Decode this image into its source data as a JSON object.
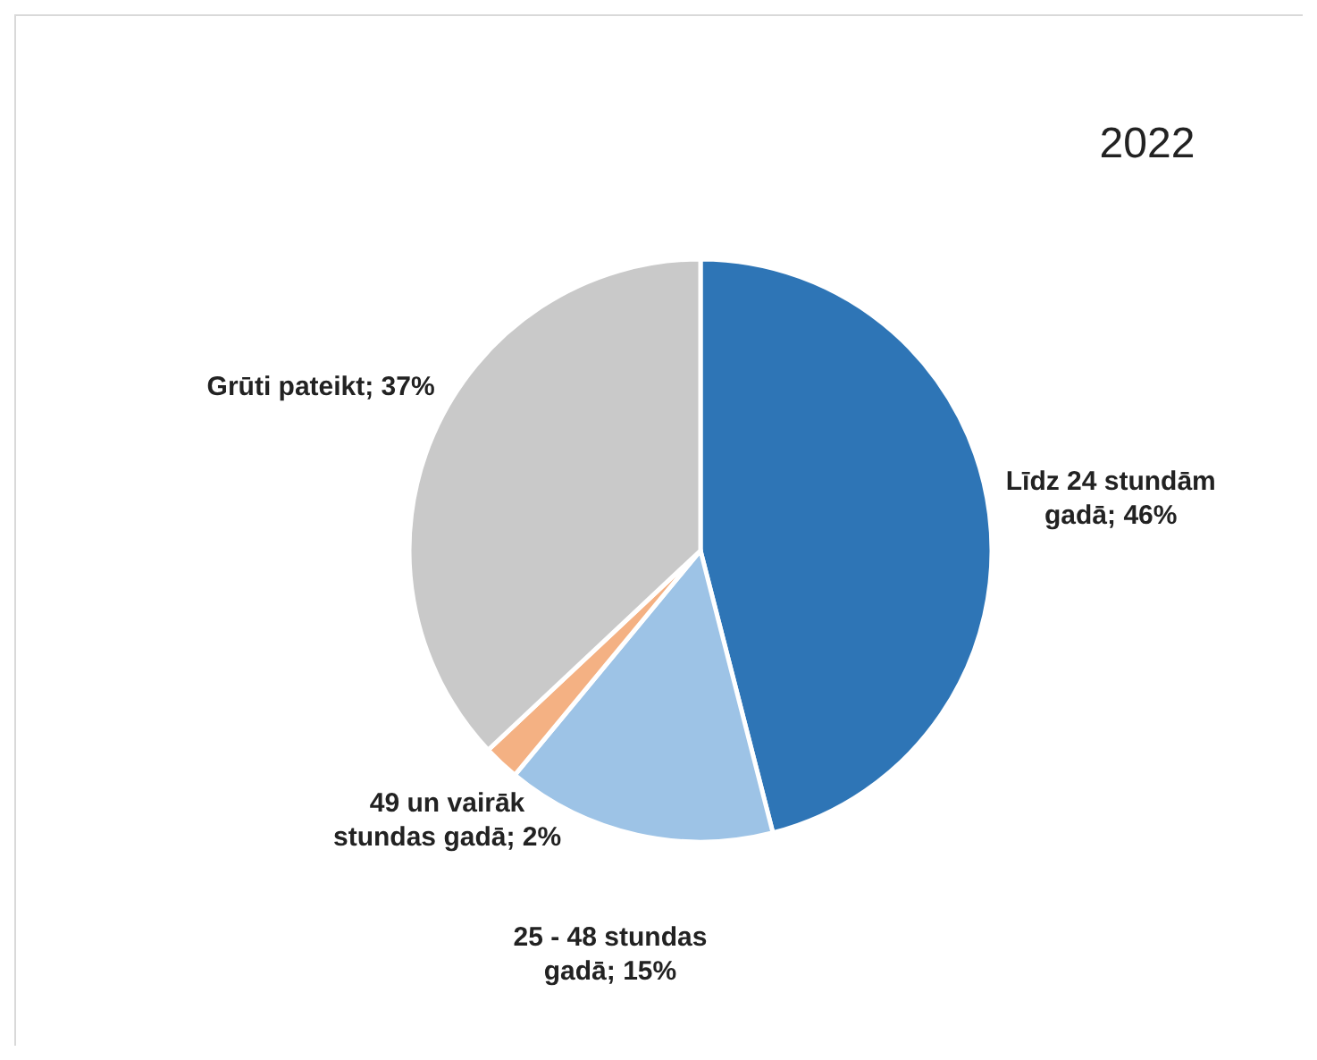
{
  "chart_data": {
    "type": "pie",
    "title": "2022",
    "categories": [
      "Līdz 24 stundām gadā",
      "25 - 48 stundas gadā",
      "49 un vairāk stundas gadā",
      "Grūti pateikt"
    ],
    "values": [
      46,
      15,
      2,
      37
    ],
    "value_labels": [
      "46%",
      "15%",
      "2%",
      "37%"
    ],
    "colors": [
      "#2e75b6",
      "#9dc3e6",
      "#f4b183",
      "#c9c9c9"
    ]
  }
}
